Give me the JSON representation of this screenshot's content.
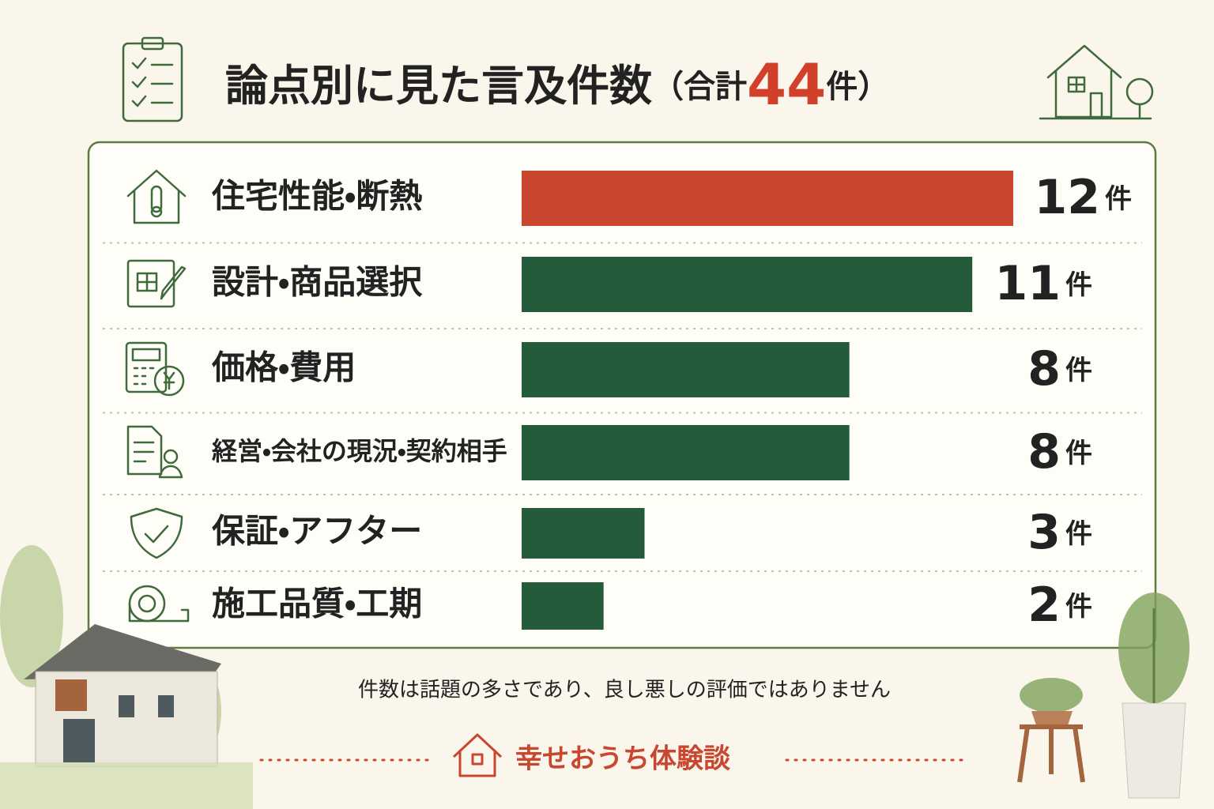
{
  "chart_data": {
    "type": "bar",
    "orientation": "horizontal",
    "title": "論点別に見た言及件数",
    "total": {
      "prefix": "（合計",
      "value": 44,
      "suffix": "件）"
    },
    "categories": [
      "住宅性能・断熱",
      "設計・商品選択",
      "価格・費用",
      "経営・会社の現況・契約相手",
      "保証・アフター",
      "施工品質・工期"
    ],
    "values": [
      12,
      11,
      8,
      8,
      3,
      2
    ],
    "unit": "件",
    "colors": [
      "#c9472f",
      "#245b3a",
      "#245b3a",
      "#245b3a",
      "#245b3a",
      "#245b3a"
    ],
    "xlim": [
      0,
      12
    ],
    "note": "件数は話題の多さであり、良し悪しの評価ではありません",
    "brand": "幸せおうち体験談"
  }
}
